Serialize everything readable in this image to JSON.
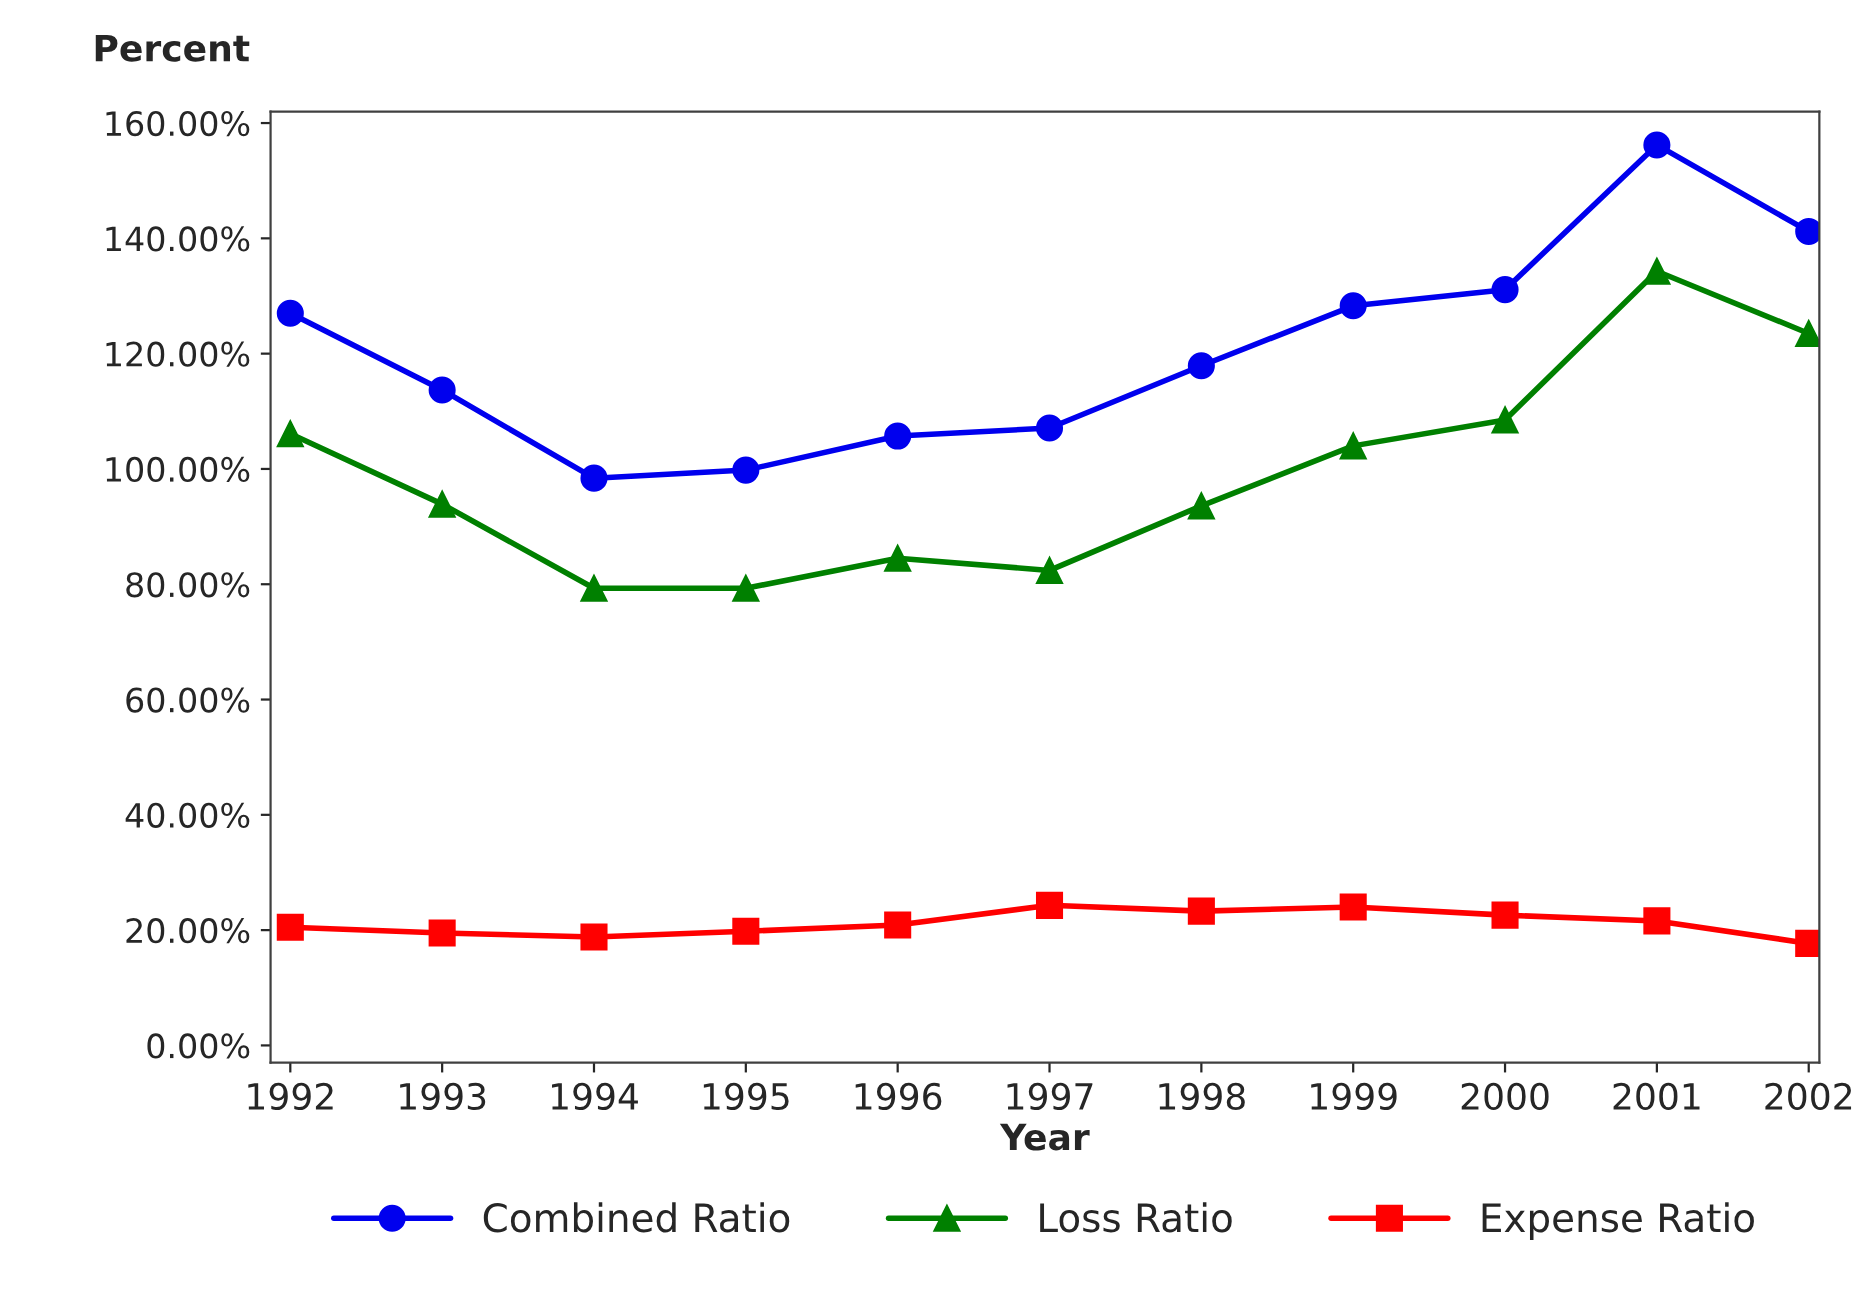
{
  "chart_data": {
    "type": "line",
    "xlabel": "Year",
    "ylabel": "Percent",
    "x": [
      1992,
      1993,
      1994,
      1995,
      1996,
      1997,
      1998,
      1999,
      2000,
      2001,
      2002
    ],
    "series": [
      {
        "name": "Combined Ratio",
        "color": "#0000ee",
        "marker": "circle",
        "values": [
          127.0,
          113.7,
          98.4,
          99.8,
          105.7,
          107.1,
          117.9,
          128.3,
          131.1,
          156.2,
          141.2
        ]
      },
      {
        "name": "Loss Ratio",
        "color": "#008000",
        "marker": "triangle",
        "values": [
          106.1,
          93.9,
          79.3,
          79.3,
          84.5,
          82.4,
          93.6,
          104.0,
          108.5,
          134.3,
          123.5
        ]
      },
      {
        "name": "Expense Ratio",
        "color": "#ff0000",
        "marker": "square",
        "values": [
          20.5,
          19.5,
          18.8,
          19.8,
          20.9,
          24.3,
          23.3,
          24.0,
          22.6,
          21.6,
          17.7
        ]
      }
    ],
    "xlim": [
      1991.87,
      2002.07
    ],
    "xticks": [
      1992,
      1993,
      1994,
      1995,
      1996,
      1997,
      1998,
      1999,
      2000,
      2001,
      2002
    ],
    "ylim": [
      -3,
      162
    ],
    "yticks": [
      {
        "value": 0,
        "label": "0.00%"
      },
      {
        "value": 20,
        "label": "20.00%"
      },
      {
        "value": 40,
        "label": "40.00%"
      },
      {
        "value": 60,
        "label": "60.00%"
      },
      {
        "value": 80,
        "label": "80.00%"
      },
      {
        "value": 100,
        "label": "100.00%"
      },
      {
        "value": 120,
        "label": "120.00%"
      },
      {
        "value": 140,
        "label": "140.00%"
      },
      {
        "value": 160,
        "label": "160.00%"
      }
    ],
    "grid": false,
    "legend": "bottom",
    "line_style": "solid"
  }
}
